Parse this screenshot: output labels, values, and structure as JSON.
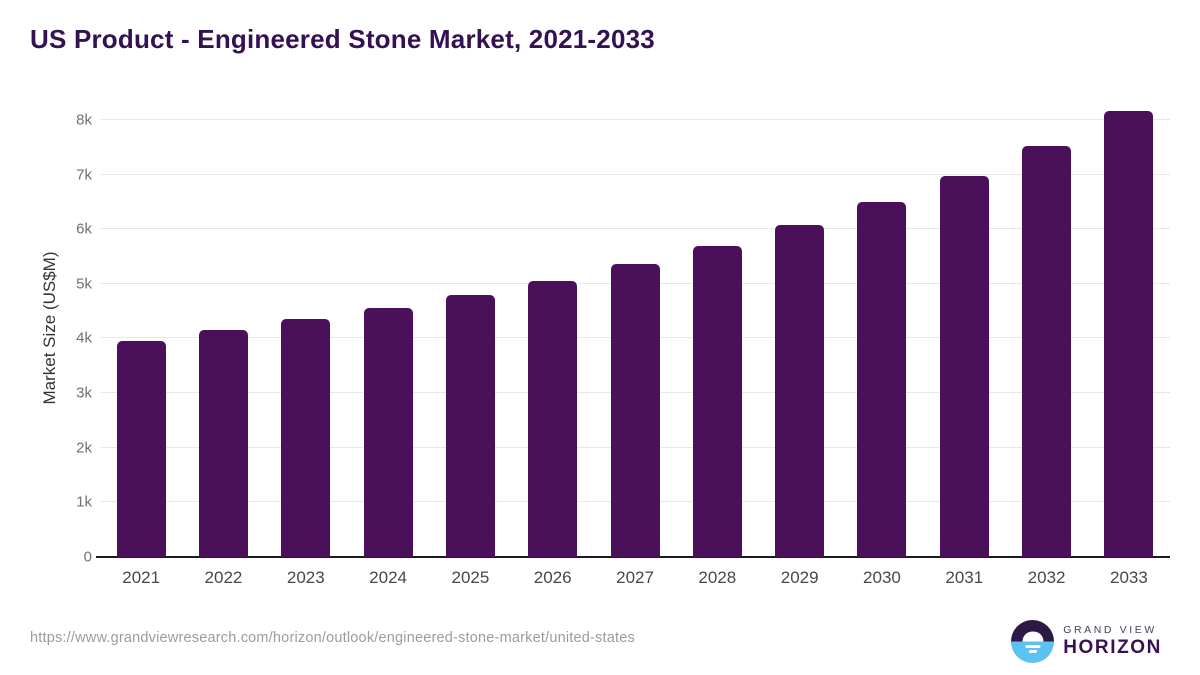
{
  "title": "US Product - Engineered Stone Market, 2021-2033",
  "chart_data": {
    "type": "bar",
    "title": "US Product - Engineered Stone Market, 2021-2033",
    "categories": [
      "2021",
      "2022",
      "2023",
      "2024",
      "2025",
      "2026",
      "2027",
      "2028",
      "2029",
      "2030",
      "2031",
      "2032",
      "2033"
    ],
    "values": [
      3960,
      4150,
      4350,
      4550,
      4790,
      5050,
      5360,
      5700,
      6080,
      6490,
      6970,
      7530,
      8160
    ],
    "xlabel": "",
    "ylabel": "Market Size (US$M)",
    "ylim": [
      0,
      8400
    ],
    "ytick_step": 1000,
    "ytick_labels": [
      "0",
      "1k",
      "2k",
      "3k",
      "4k",
      "5k",
      "6k",
      "7k",
      "8k"
    ],
    "bar_color": "#4a1059",
    "grid": "horizontal",
    "legend": "none"
  },
  "footer": {
    "source_url": "https://www.grandviewresearch.com/horizon/outlook/engineered-stone-market/united-states",
    "logo_line1": "GRAND VIEW",
    "logo_line2": "HORIZON"
  },
  "colors": {
    "bar": "#4a1059",
    "title": "#341153",
    "gridline": "#e8e8e8",
    "axis_line": "#1b1b1b",
    "logo_dark": "#2b1a45",
    "logo_blue": "#5bc2f2"
  }
}
